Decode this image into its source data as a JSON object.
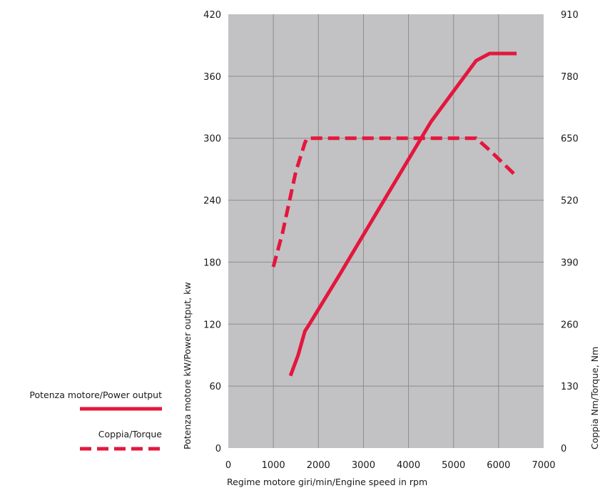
{
  "chart_data": {
    "type": "line",
    "xlabel": "Regime motore giri/min/Engine speed in rpm",
    "ylabel": "Potenza motore kW/Power output, kw",
    "y2label": "Coppia Nm/Torque, Nm",
    "xlim": [
      0,
      7000
    ],
    "ylim": [
      0,
      420
    ],
    "y2lim": [
      0,
      910
    ],
    "x_ticks": [
      "0",
      "1000",
      "2000",
      "3000",
      "4000",
      "5000",
      "6000",
      "7000"
    ],
    "y_ticks": [
      "0",
      "60",
      "120",
      "180",
      "240",
      "300",
      "360",
      "420"
    ],
    "y2_ticks": [
      "0",
      "130",
      "260",
      "390",
      "520",
      "650",
      "780",
      "910"
    ],
    "grid": true,
    "legend_position": "left",
    "colors": {
      "plot_bg": "#c2c2c4",
      "grid": "#8c8c8c",
      "series": "#e4173e"
    },
    "series": [
      {
        "name": "Potenza motore/Power output",
        "axis": "left",
        "style": "solid",
        "x": [
          1380,
          1550,
          1700,
          1800,
          2500,
          3500,
          4500,
          5500,
          5800,
          6400
        ],
        "values": [
          70,
          90,
          113,
          120,
          170,
          243,
          316,
          375,
          382,
          382
        ]
      },
      {
        "name": "Coppia/Torque",
        "axis": "right",
        "style": "dashed",
        "x": [
          1000,
          1200,
          1500,
          1700,
          1750,
          3000,
          5000,
          5500,
          5800,
          6400
        ],
        "values": [
          380,
          450,
          580,
          640,
          650,
          650,
          650,
          650,
          625,
          570
        ]
      }
    ]
  }
}
